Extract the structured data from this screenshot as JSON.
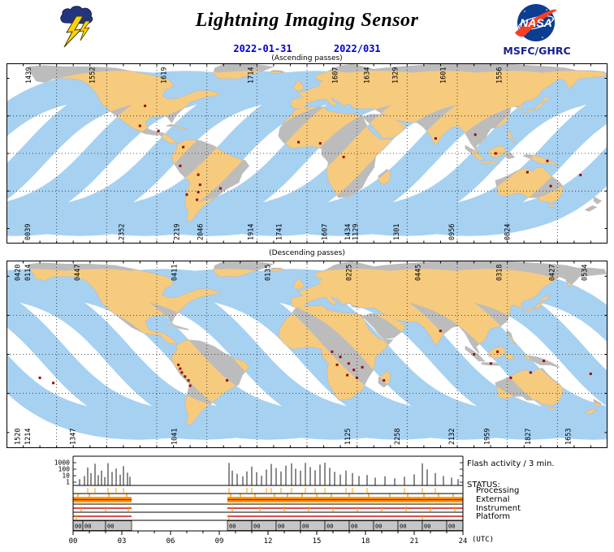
{
  "header": {
    "title": "Lightning Imaging Sensor",
    "date_iso": "2022-01-31",
    "date_doy": "2022/031",
    "agency": "MSFC/GHRC",
    "nasa_logo_text": "NASA"
  },
  "icons": {
    "header_left": "storm-cloud-lightning-icon",
    "header_right": "nasa-insignia-icon"
  },
  "colors": {
    "swath_ocean": "#a7d1f1",
    "swath_land": "#f7cb7d",
    "land": "#bcbcbc",
    "flash_dot": "#9e0508",
    "date_blue": "#0000cd",
    "status_orange": "#ff9c00",
    "status_red": "#cf1010",
    "gray_band": "#c6c6c6",
    "nasa_blue": "#0b3d91",
    "nasa_red": "#fc3d21",
    "agency_navy": "#16218c"
  },
  "maps": {
    "ascending": {
      "caption": "(Ascending passes)",
      "direction": 1,
      "swath_positions": [
        -0.06,
        0.048,
        0.156,
        0.264,
        0.372,
        0.48,
        0.588,
        0.696,
        0.804,
        0.912,
        1.02
      ],
      "top_labels": [
        {
          "x": 0.037,
          "label": "1439"
        },
        {
          "x": 0.143,
          "label": "1552"
        },
        {
          "x": 0.262,
          "label": "1619"
        },
        {
          "x": 0.407,
          "label": "1714"
        },
        {
          "x": 0.547,
          "label": "1607"
        },
        {
          "x": 0.6,
          "label": "1634"
        },
        {
          "x": 0.647,
          "label": "1329"
        },
        {
          "x": 0.727,
          "label": "1601"
        },
        {
          "x": 0.82,
          "label": "1556"
        }
      ],
      "bottom_labels": [
        {
          "x": 0.036,
          "label": "0039"
        },
        {
          "x": 0.192,
          "label": "2352"
        },
        {
          "x": 0.284,
          "label": "2219"
        },
        {
          "x": 0.323,
          "label": "2046"
        },
        {
          "x": 0.407,
          "label": "1914"
        },
        {
          "x": 0.454,
          "label": "1741"
        },
        {
          "x": 0.53,
          "label": "1607"
        },
        {
          "x": 0.568,
          "label": "1434"
        },
        {
          "x": 0.581,
          "label": "1129"
        },
        {
          "x": 0.649,
          "label": "1301"
        },
        {
          "x": 0.741,
          "label": "0956"
        },
        {
          "x": 0.834,
          "label": "0824"
        }
      ],
      "flash_dots": [
        [
          0.2306,
          0.236
        ],
        [
          0.222,
          0.347
        ],
        [
          0.2528,
          0.375
        ],
        [
          0.294,
          0.465
        ],
        [
          0.289,
          0.569
        ],
        [
          0.319,
          0.618
        ],
        [
          0.322,
          0.674
        ],
        [
          0.319,
          0.715
        ],
        [
          0.317,
          0.757
        ],
        [
          0.3,
          0.729
        ],
        [
          0.356,
          0.694
        ],
        [
          0.486,
          0.4375
        ],
        [
          0.522,
          0.444
        ],
        [
          0.561,
          0.52
        ],
        [
          0.714,
          0.417
        ],
        [
          0.78,
          0.396
        ],
        [
          0.8139,
          0.5
        ],
        [
          0.9,
          0.542
        ],
        [
          0.8667,
          0.604
        ],
        [
          0.9056,
          0.681
        ],
        [
          0.955,
          0.62
        ]
      ]
    },
    "descending": {
      "caption": "(Descending passes)",
      "direction": -1,
      "swath_positions": [
        -0.03,
        0.078,
        0.186,
        0.294,
        0.402,
        0.51,
        0.618,
        0.726,
        0.834,
        0.942,
        1.05
      ],
      "top_labels": [
        {
          "x": 0.019,
          "label": "0420"
        },
        {
          "x": 0.036,
          "label": "0114"
        },
        {
          "x": 0.118,
          "label": "0447"
        },
        {
          "x": 0.28,
          "label": "0411"
        },
        {
          "x": 0.435,
          "label": "0135"
        },
        {
          "x": 0.57,
          "label": "0225"
        },
        {
          "x": 0.685,
          "label": "0445"
        },
        {
          "x": 0.82,
          "label": "0318"
        },
        {
          "x": 0.908,
          "label": "0427"
        },
        {
          "x": 0.962,
          "label": "0534"
        }
      ],
      "bottom_labels": [
        {
          "x": 0.019,
          "label": "1520"
        },
        {
          "x": 0.036,
          "label": "1214"
        },
        {
          "x": 0.111,
          "label": "1347"
        },
        {
          "x": 0.28,
          "label": "1041"
        },
        {
          "x": 0.568,
          "label": "1125"
        },
        {
          "x": 0.651,
          "label": "2258"
        },
        {
          "x": 0.741,
          "label": "2132"
        },
        {
          "x": 0.8,
          "label": "1959"
        },
        {
          "x": 0.868,
          "label": "1827"
        },
        {
          "x": 0.935,
          "label": "1653"
        }
      ],
      "flash_dots": [
        [
          0.286,
          0.556
        ],
        [
          0.289,
          0.576
        ],
        [
          0.2917,
          0.597
        ],
        [
          0.297,
          0.618
        ],
        [
          0.3028,
          0.639
        ],
        [
          0.3056,
          0.667
        ],
        [
          0.367,
          0.639
        ],
        [
          0.0556,
          0.625
        ],
        [
          0.0778,
          0.653
        ],
        [
          0.5417,
          0.486
        ],
        [
          0.5556,
          0.514
        ],
        [
          0.5694,
          0.549
        ],
        [
          0.578,
          0.583
        ],
        [
          0.567,
          0.611
        ],
        [
          0.583,
          0.625
        ],
        [
          0.592,
          0.569
        ],
        [
          0.55,
          0.556
        ],
        [
          0.628,
          0.639
        ],
        [
          0.722,
          0.375
        ],
        [
          0.778,
          0.5
        ],
        [
          0.817,
          0.486
        ],
        [
          0.806,
          0.549
        ],
        [
          0.894,
          0.535
        ],
        [
          0.872,
          0.597
        ],
        [
          0.839,
          0.625
        ],
        [
          0.972,
          0.604
        ]
      ]
    }
  },
  "chart_data": {
    "type": "bar",
    "title": "Flash activity / 3 min.",
    "status_label": "STATUS:",
    "status_rows": [
      "Processing",
      "External",
      "Instrument",
      "Platform"
    ],
    "x_axis": {
      "ticks": [
        "00",
        "03",
        "06",
        "09",
        "12",
        "15",
        "18",
        "21",
        "24"
      ],
      "unit": "(UTC)",
      "range_hours": [
        0,
        24
      ]
    },
    "y_axis": {
      "scale": "log",
      "ticks": [
        "1000",
        "100",
        "10",
        "1"
      ],
      "range": [
        1,
        1000
      ]
    },
    "flash_spikes": [
      [
        0.4,
        3
      ],
      [
        0.7,
        9
      ],
      [
        0.9,
        180
      ],
      [
        1.1,
        25
      ],
      [
        1.35,
        700
      ],
      [
        1.55,
        12
      ],
      [
        1.75,
        60
      ],
      [
        1.95,
        6
      ],
      [
        2.15,
        850
      ],
      [
        2.4,
        40
      ],
      [
        2.65,
        130
      ],
      [
        2.9,
        15
      ],
      [
        3.1,
        300
      ],
      [
        3.35,
        30
      ],
      [
        3.5,
        7
      ],
      [
        9.6,
        900
      ],
      [
        9.8,
        60
      ],
      [
        10.1,
        20
      ],
      [
        10.45,
        8
      ],
      [
        10.7,
        45
      ],
      [
        11.0,
        260
      ],
      [
        11.3,
        35
      ],
      [
        11.6,
        10
      ],
      [
        11.9,
        90
      ],
      [
        12.2,
        650
      ],
      [
        12.5,
        150
      ],
      [
        12.8,
        45
      ],
      [
        13.1,
        350
      ],
      [
        13.45,
        820
      ],
      [
        13.7,
        120
      ],
      [
        14.0,
        60
      ],
      [
        14.3,
        950
      ],
      [
        14.6,
        210
      ],
      [
        14.9,
        70
      ],
      [
        15.2,
        500
      ],
      [
        15.5,
        1000
      ],
      [
        15.8,
        160
      ],
      [
        16.1,
        40
      ],
      [
        16.45,
        15
      ],
      [
        16.8,
        60
      ],
      [
        17.2,
        25
      ],
      [
        17.6,
        9
      ],
      [
        18.1,
        13
      ],
      [
        18.6,
        5
      ],
      [
        19.2,
        8
      ],
      [
        19.8,
        4
      ],
      [
        20.4,
        7
      ],
      [
        21.0,
        16
      ],
      [
        21.5,
        820
      ],
      [
        21.8,
        95
      ],
      [
        22.3,
        26
      ],
      [
        22.8,
        9
      ],
      [
        23.3,
        5
      ],
      [
        23.7,
        3
      ]
    ],
    "coverage_segments": [
      [
        0,
        3.6
      ],
      [
        9.5,
        24
      ]
    ],
    "processing_ticks": [
      0.9,
      1.35,
      2.15,
      2.65,
      3.1,
      9.6,
      10.7,
      11.0,
      11.9,
      12.2,
      12.8,
      13.45,
      14.3,
      14.9,
      15.5,
      16.8,
      17.2,
      18.1,
      20.4,
      21.5,
      22.3
    ],
    "external_spikes": [
      0.3,
      1.0,
      2.2,
      3.3,
      9.7,
      10.3,
      11.2,
      12.4,
      13.2,
      14.1,
      15.0,
      15.9,
      17.0,
      18.2,
      19.5,
      20.6,
      21.6,
      22.5,
      23.4
    ],
    "instrument_ticks": [
      0.5,
      2.0,
      3.4,
      9.8,
      11.5,
      13.0,
      14.5,
      16.0,
      17.5,
      19.0,
      20.5,
      22.0,
      23.5
    ],
    "platform_ticks": [
      0.2,
      9.6,
      21.5
    ],
    "gray_segments": [
      {
        "start": 0.0,
        "end": 0.6,
        "label": "00"
      },
      {
        "start": 0.6,
        "end": 2.0,
        "label": "00"
      },
      {
        "start": 2.0,
        "end": 3.6,
        "label": "00"
      },
      {
        "start": 9.5,
        "end": 11.0,
        "label": "00"
      },
      {
        "start": 11.0,
        "end": 12.5,
        "label": "00"
      },
      {
        "start": 12.5,
        "end": 14.0,
        "label": "00"
      },
      {
        "start": 14.0,
        "end": 15.5,
        "label": "00"
      },
      {
        "start": 15.5,
        "end": 17.0,
        "label": "00"
      },
      {
        "start": 17.0,
        "end": 18.5,
        "label": "00"
      },
      {
        "start": 18.5,
        "end": 20.0,
        "label": "00"
      },
      {
        "start": 20.0,
        "end": 21.5,
        "label": "00"
      },
      {
        "start": 21.5,
        "end": 23.0,
        "label": "00"
      },
      {
        "start": 23.0,
        "end": 24.0,
        "label": "00"
      }
    ]
  }
}
